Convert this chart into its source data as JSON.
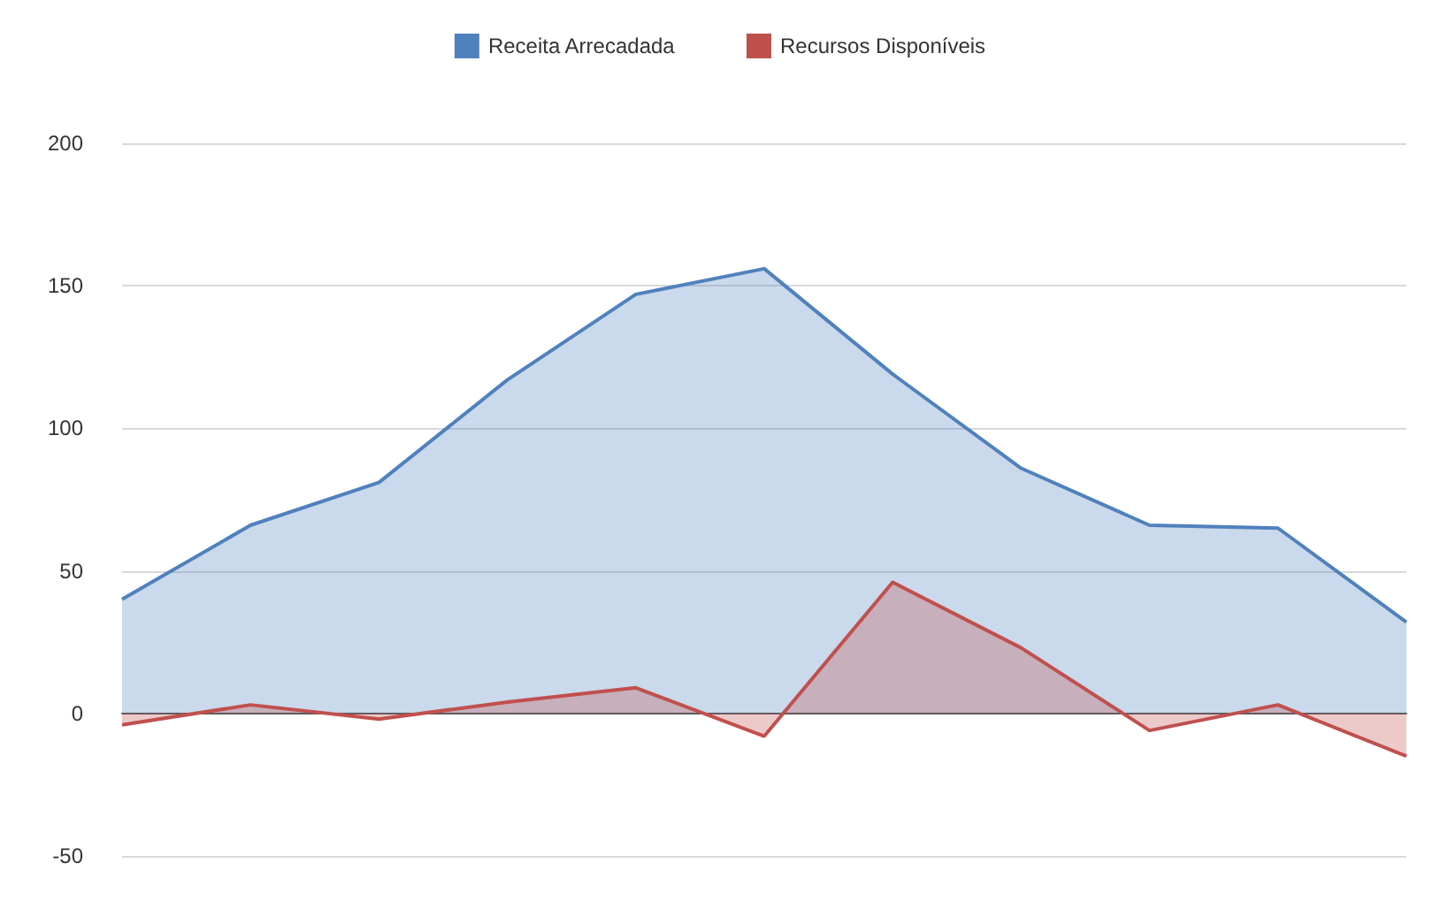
{
  "chart_data": {
    "type": "area",
    "categories": [
      null,
      null,
      null,
      null,
      null,
      null,
      null,
      null,
      null,
      null,
      null
    ],
    "series": [
      {
        "name": "Receita Arrecadada",
        "color": "#4f81bd",
        "values": [
          40,
          66,
          81,
          117,
          147,
          156,
          119,
          86,
          66,
          65,
          32
        ]
      },
      {
        "name": "Recursos Disponíveis",
        "color": "#c0504d",
        "values": [
          -4,
          3,
          -2,
          4,
          9,
          -8,
          46,
          23,
          -6,
          3,
          -15
        ]
      }
    ],
    "ylim": [
      -50,
      200
    ],
    "yticks": [
      -50,
      0,
      50,
      100,
      150,
      200
    ],
    "grid": "y",
    "legend": "top",
    "tick_labels": "y"
  }
}
